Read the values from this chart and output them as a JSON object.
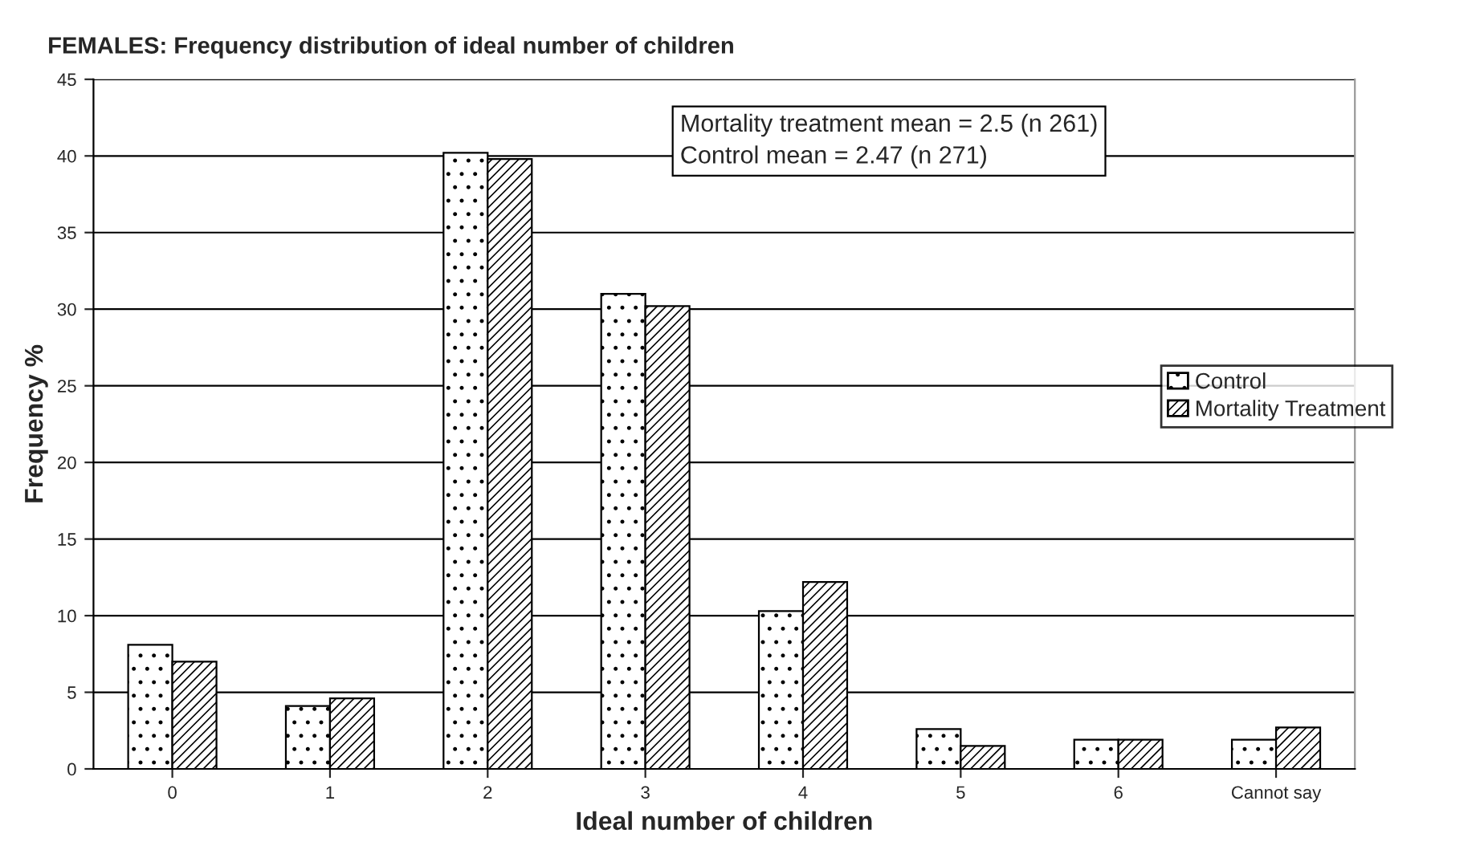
{
  "chart_data": {
    "type": "bar",
    "title": "FEMALES: Frequency distribution of ideal number of children",
    "xlabel": "Ideal number of children",
    "ylabel": "Frequency %",
    "categories": [
      "0",
      "1",
      "2",
      "3",
      "4",
      "5",
      "6",
      "Cannot say"
    ],
    "series": [
      {
        "name": "Control",
        "color": "#000000",
        "values": [
          8.1,
          4.1,
          40.2,
          31.0,
          10.3,
          2.6,
          1.9,
          1.9
        ]
      },
      {
        "name": "Mortality Treatment",
        "color": "#000000",
        "values": [
          7.0,
          4.6,
          39.8,
          30.2,
          12.2,
          1.5,
          1.9,
          2.7
        ]
      }
    ],
    "ylim": [
      0,
      45
    ],
    "yticks": [
      0,
      5,
      10,
      15,
      20,
      25,
      30,
      35,
      40,
      45
    ],
    "grid": "y",
    "legend": "right",
    "annotations": [
      "Mortality treatment mean = 2.5 (n 261)\nControl mean = 2.47 (n 271)"
    ]
  }
}
